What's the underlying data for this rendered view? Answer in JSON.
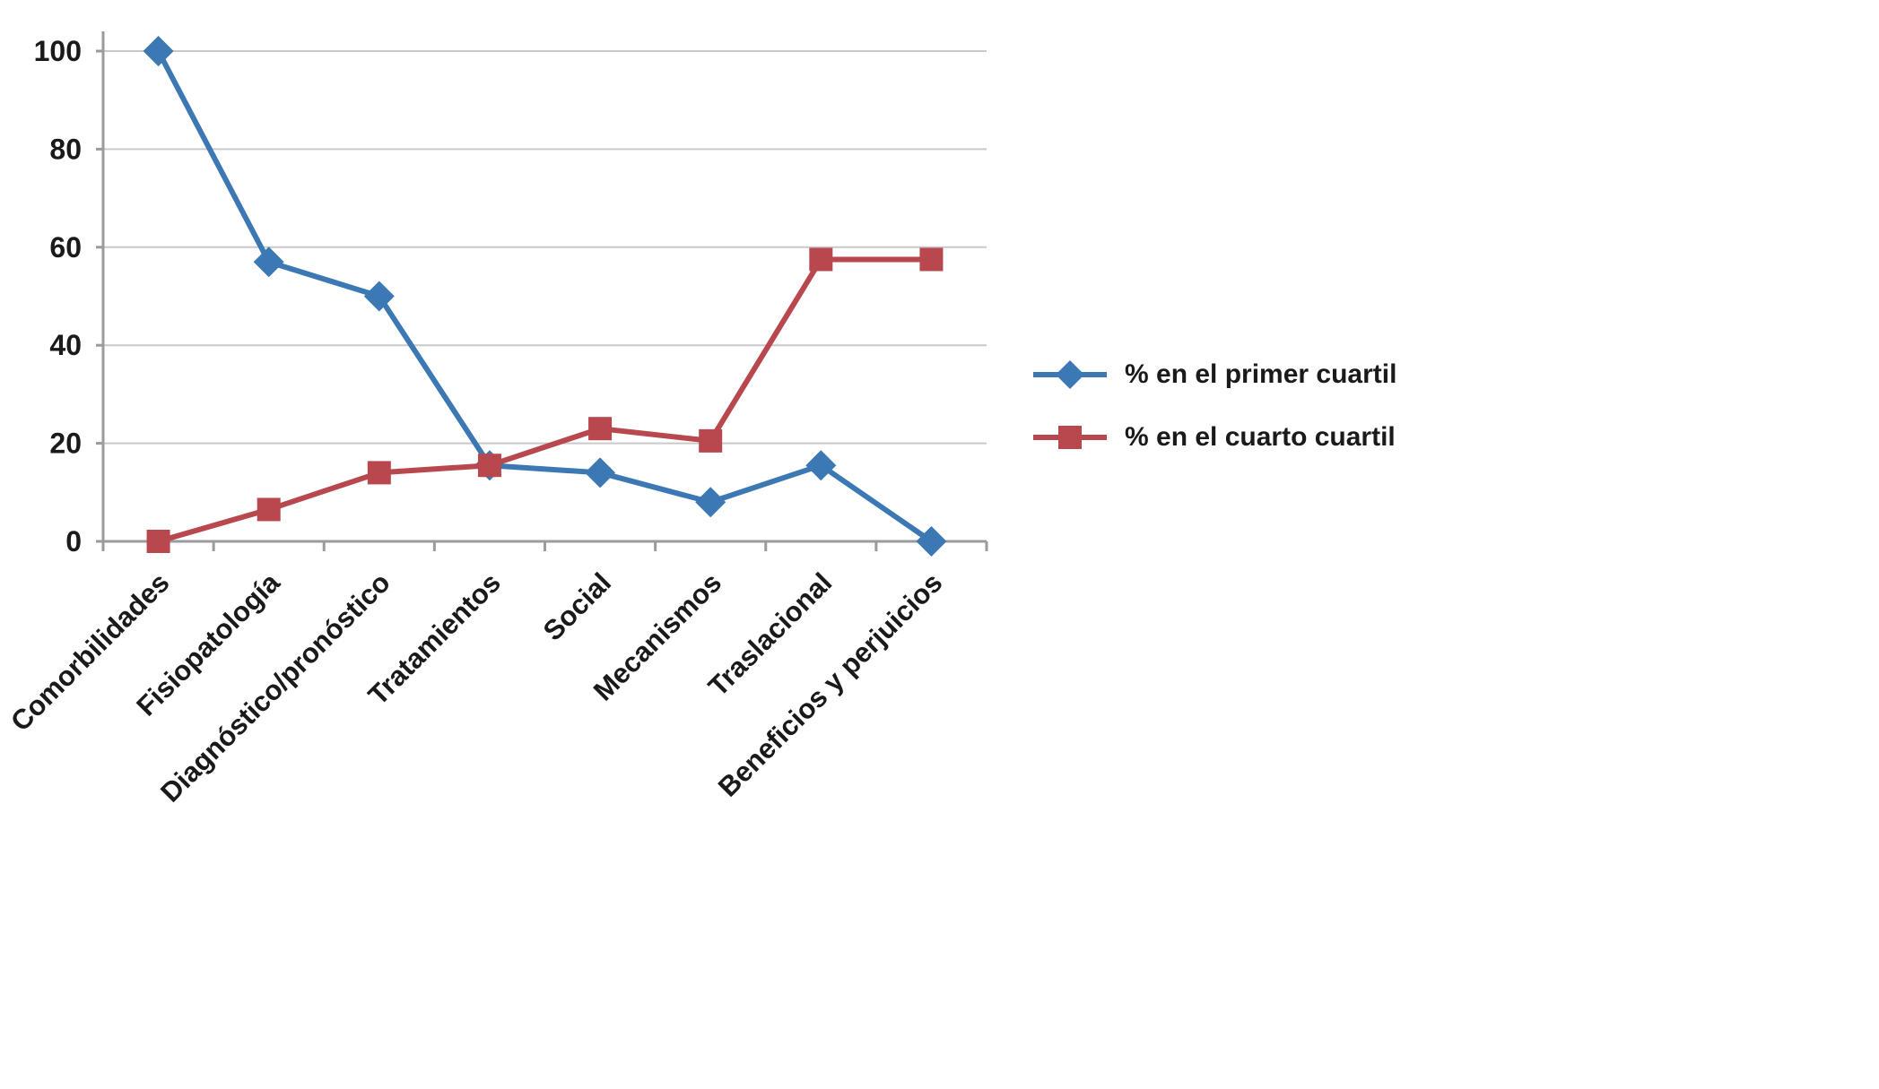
{
  "chart_data": {
    "type": "line",
    "title": "",
    "xlabel": "",
    "ylabel": "",
    "categories": [
      "Comorbilidades",
      "Fisiopatología",
      "Diagnóstico/pronóstico",
      "Tratamientos",
      "Social",
      "Mecanismos",
      "Traslacional",
      "Beneficios y perjuicios"
    ],
    "series": [
      {
        "name": "% en el primer cuartil",
        "marker": "diamond",
        "color": "#3C78B4",
        "values": [
          100,
          57,
          50,
          15.5,
          14,
          8,
          15.5,
          0
        ]
      },
      {
        "name": "% en el cuarto cuartil",
        "marker": "square",
        "color": "#B8484E",
        "values": [
          0,
          6.5,
          14,
          15.5,
          23,
          20.5,
          57.5,
          57.5
        ]
      }
    ],
    "yticks": [
      0,
      20,
      40,
      60,
      80,
      100
    ],
    "ylim": [
      0,
      100
    ],
    "grid": true,
    "legend_position": "right",
    "gridline_color": "#C9C9C9",
    "axis_color": "#9B9B9B",
    "label_color": "#1A1A1A"
  }
}
